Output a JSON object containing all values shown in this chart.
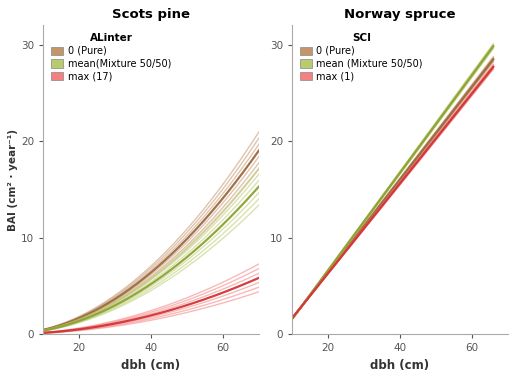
{
  "left_title": "Scots pine",
  "right_title": "Norway spruce",
  "xlabel": "dbh (cm)",
  "ylabel": "BAI (cm² · year⁻¹)",
  "xlim": [
    10,
    70
  ],
  "ylim": [
    0,
    32
  ],
  "yticks": [
    0,
    10,
    20,
    30
  ],
  "xticks": [
    20,
    40,
    60
  ],
  "left_legend_title": "ALinter",
  "right_legend_title": "SCI",
  "left_legend_labels": [
    "0 (Pure)",
    "mean(Mixture 50/50)",
    "max (17)"
  ],
  "right_legend_labels": [
    "0 (Pure)",
    "mean (Mixture 50/50)",
    "max (1)"
  ],
  "color_pure": "#c4956a",
  "color_mean": "#b8cc6e",
  "color_max": "#f48080",
  "color_pure_dark": "#9a6840",
  "color_mean_dark": "#8ca030",
  "color_max_dark": "#d03030",
  "bg_color": "#ffffff",
  "pine_pure_a": 0.0048,
  "pine_pure_b": 1.95,
  "pine_mean_a": 0.0042,
  "pine_mean_b": 1.93,
  "pine_max_a": 0.00135,
  "pine_max_b": 1.97,
  "pine_pure_band_scale": 0.0006,
  "pine_mean_band_scale": 0.0006,
  "pine_max_band_scale": 0.00045,
  "spruce_pure_slope": 0.48,
  "spruce_pure_intercept": -3.2,
  "spruce_mean_slope": 0.505,
  "spruce_mean_intercept": -3.5,
  "spruce_max_slope": 0.465,
  "spruce_max_intercept": -3.0,
  "spruce_band_scale": 0.004,
  "n_band": 7
}
